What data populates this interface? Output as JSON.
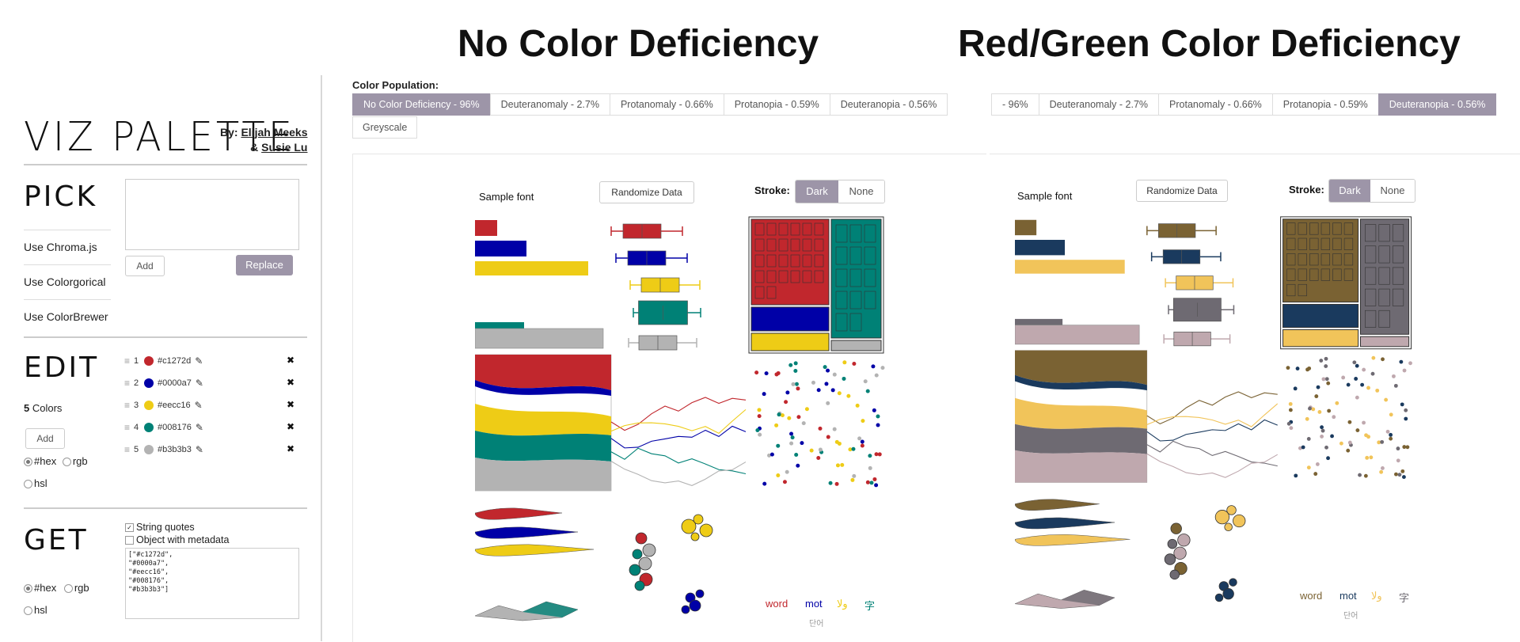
{
  "headings": {
    "left": "No Color Deficiency",
    "right": "Red/Green Color Deficiency"
  },
  "brand": {
    "title": "VIZ PALETTE",
    "by": "By:",
    "author1": "Elijah Meeks",
    "amp": "&",
    "author2": "Susie Lu"
  },
  "pick": {
    "title": "PICK",
    "links": [
      "Use Chroma.js",
      "Use Colorgorical",
      "Use ColorBrewer"
    ],
    "add": "Add",
    "replace": "Replace"
  },
  "edit": {
    "title": "EDIT",
    "count": "5",
    "count_label": "Colors",
    "add": "Add",
    "format_options": [
      "#hex",
      "rgb",
      "hsl"
    ],
    "selected_format": "#hex",
    "colors": [
      {
        "index": "1",
        "hex": "#c1272d"
      },
      {
        "index": "2",
        "hex": "#0000a7"
      },
      {
        "index": "3",
        "hex": "#eecc16"
      },
      {
        "index": "4",
        "hex": "#008176"
      },
      {
        "index": "5",
        "hex": "#b3b3b3"
      }
    ]
  },
  "get": {
    "title": "GET",
    "string_quotes": "String quotes",
    "string_quotes_checked": true,
    "object_metadata": "Object with metadata",
    "object_metadata_checked": false,
    "format_options": [
      "#hex",
      "rgb",
      "hsl"
    ],
    "selected_format": "#hex",
    "output": "[\"#c1272d\",\n\"#0000a7\",\n\"#eecc16\",\n\"#008176\",\n\"#b3b3b3\"]"
  },
  "population": {
    "label": "Color Population:",
    "tabs_left": [
      "No Color Deficiency - 96%",
      "Deuteranomaly - 2.7%",
      "Protanomaly - 0.66%",
      "Protanopia - 0.59%",
      "Deuteranopia - 0.56%"
    ],
    "active_left": "No Color Deficiency - 96%",
    "greyscale": "Greyscale",
    "tabs_right": [
      "- 96%",
      "Deuteranomaly - 2.7%",
      "Protanomaly - 0.66%",
      "Protanopia - 0.59%",
      "Deuteranopia - 0.56%"
    ],
    "active_right": "Deuteranopia - 0.56%"
  },
  "preview": {
    "sample_font": "Sample font",
    "randomize": "Randomize Data",
    "stroke_label": "Stroke:",
    "stroke_dark": "Dark",
    "stroke_none": "None",
    "words": [
      "word",
      "mot",
      "ولا",
      "字"
    ],
    "korean": "단어"
  },
  "colors": {
    "normal": [
      "#c1272d",
      "#0000a7",
      "#eecc16",
      "#008176",
      "#b3b3b3"
    ],
    "deutan": [
      "#7a6233",
      "#1a3a5e",
      "#f1c45a",
      "#6e6a72",
      "#bfa8ae"
    ],
    "accent": "#9d95a8"
  }
}
